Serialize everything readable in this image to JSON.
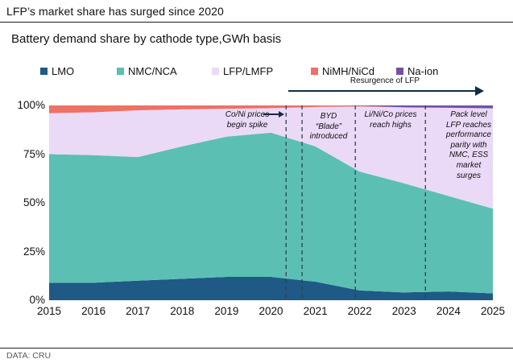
{
  "header": {
    "title": "LFP’s market share has surged since 2020"
  },
  "chart_data": {
    "type": "area",
    "stacked": true,
    "percent_basis": true,
    "title": "Battery demand share by cathode type,GWh basis",
    "xlabel": "",
    "ylabel": "",
    "xlim": [
      2015,
      2025
    ],
    "ylim": [
      0,
      100
    ],
    "grid": false,
    "legend_position": "top",
    "x": [
      2015,
      2016,
      2017,
      2018,
      2019,
      2020,
      2021,
      2022,
      2023,
      2024,
      2025
    ],
    "series": [
      {
        "name": "LMO",
        "color": "#1E5A85",
        "values": [
          9,
          9,
          10,
          11,
          12,
          12,
          9.5,
          5,
          4,
          4.5,
          3.5
        ]
      },
      {
        "name": "NMC/NCA",
        "color": "#5BBFB4",
        "values": [
          66,
          65.5,
          63.5,
          68,
          72,
          74,
          69.5,
          61,
          56,
          49,
          43.5
        ]
      },
      {
        "name": "LFP/LMFP",
        "color": "#EAD9F7",
        "values": [
          21,
          22,
          24,
          19,
          14.3,
          12.6,
          20.2,
          33.5,
          39,
          45.3,
          51.5
        ]
      },
      {
        "name": "NiMH/NiCd",
        "color": "#ED7164",
        "values": [
          4,
          3.5,
          2.5,
          2,
          1.7,
          1.4,
          0.8,
          0.3,
          0,
          0,
          0
        ]
      },
      {
        "name": "Na-ion",
        "color": "#7452A3",
        "values": [
          0,
          0,
          0,
          0,
          0,
          0,
          0,
          0.2,
          1,
          1.2,
          1.5
        ]
      }
    ],
    "yticks": [
      {
        "value": 100,
        "label": "100%"
      },
      {
        "value": 75,
        "label": "75%"
      },
      {
        "value": 50,
        "label": "50%"
      },
      {
        "value": 25,
        "label": "25%"
      },
      {
        "value": 0,
        "label": "0%"
      }
    ],
    "event_lines": [
      2020.34,
      2020.7,
      2021.9,
      2023.48
    ],
    "annotations": [
      {
        "text": "Co/Ni prices\nbegin spike"
      },
      {
        "text": "BYD\n“Blade”\nintroduced"
      },
      {
        "text": "Li/Ni/Co prices\nreach highs"
      },
      {
        "text": "Pack level\nLFP reaches\nperformance\nparity with\nNMC, ESS\nmarket\nsurges"
      }
    ],
    "resurgence_label": "Resurgence of LFP"
  },
  "footer": {
    "source": "DATA: CRU"
  }
}
